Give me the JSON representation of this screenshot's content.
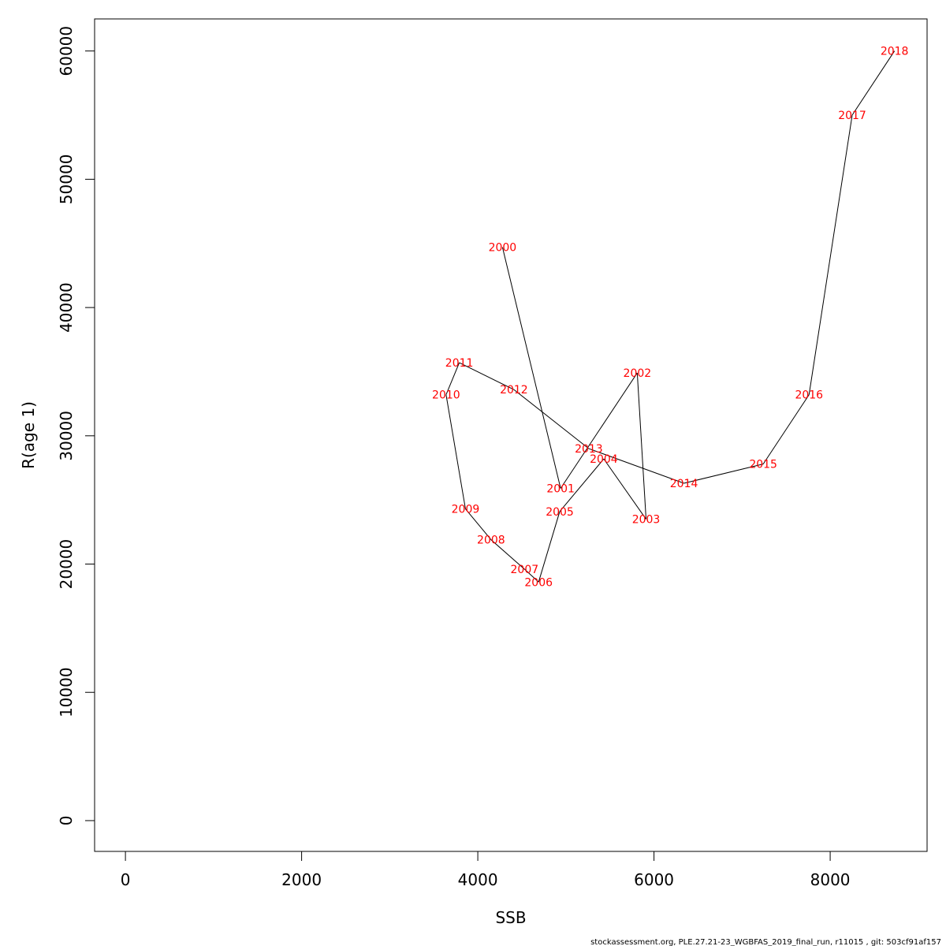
{
  "chart_data": {
    "type": "line",
    "xlabel": "SSB",
    "ylabel": "R(age 1)",
    "xlim": [
      -350,
      9100
    ],
    "ylim": [
      -2400,
      62500
    ],
    "x_ticks": [
      0,
      2000,
      4000,
      6000,
      8000
    ],
    "y_ticks": [
      0,
      10000,
      20000,
      30000,
      40000,
      50000,
      60000
    ],
    "x_tick_labels": [
      "0",
      "2000",
      "4000",
      "6000",
      "8000"
    ],
    "y_tick_labels": [
      "0",
      "10000",
      "20000",
      "30000",
      "40000",
      "50000",
      "60000"
    ],
    "grid": false,
    "line_color": "#000000",
    "label_color": "#ff0000",
    "points": [
      {
        "label": "2000",
        "x": 4280,
        "y": 44700
      },
      {
        "label": "2001",
        "x": 4940,
        "y": 25900
      },
      {
        "label": "2002",
        "x": 5810,
        "y": 34900
      },
      {
        "label": "2003",
        "x": 5910,
        "y": 23500
      },
      {
        "label": "2004",
        "x": 5430,
        "y": 28200
      },
      {
        "label": "2005",
        "x": 4930,
        "y": 24100
      },
      {
        "label": "2006",
        "x": 4690,
        "y": 18600
      },
      {
        "label": "2007",
        "x": 4530,
        "y": 19600
      },
      {
        "label": "2008",
        "x": 4150,
        "y": 21900
      },
      {
        "label": "2009",
        "x": 3860,
        "y": 24300
      },
      {
        "label": "2010",
        "x": 3640,
        "y": 33200
      },
      {
        "label": "2011",
        "x": 3790,
        "y": 35700
      },
      {
        "label": "2012",
        "x": 4410,
        "y": 33600
      },
      {
        "label": "2013",
        "x": 5260,
        "y": 29000
      },
      {
        "label": "2014",
        "x": 6340,
        "y": 26300
      },
      {
        "label": "2015",
        "x": 7240,
        "y": 27800
      },
      {
        "label": "2016",
        "x": 7760,
        "y": 33200
      },
      {
        "label": "2017",
        "x": 8250,
        "y": 55000
      },
      {
        "label": "2018",
        "x": 8730,
        "y": 60000
      }
    ]
  },
  "footer": "stockassessment.org, PLE.27.21-23_WGBFAS_2019_final_run, r11015 , git: 503cf91af157"
}
